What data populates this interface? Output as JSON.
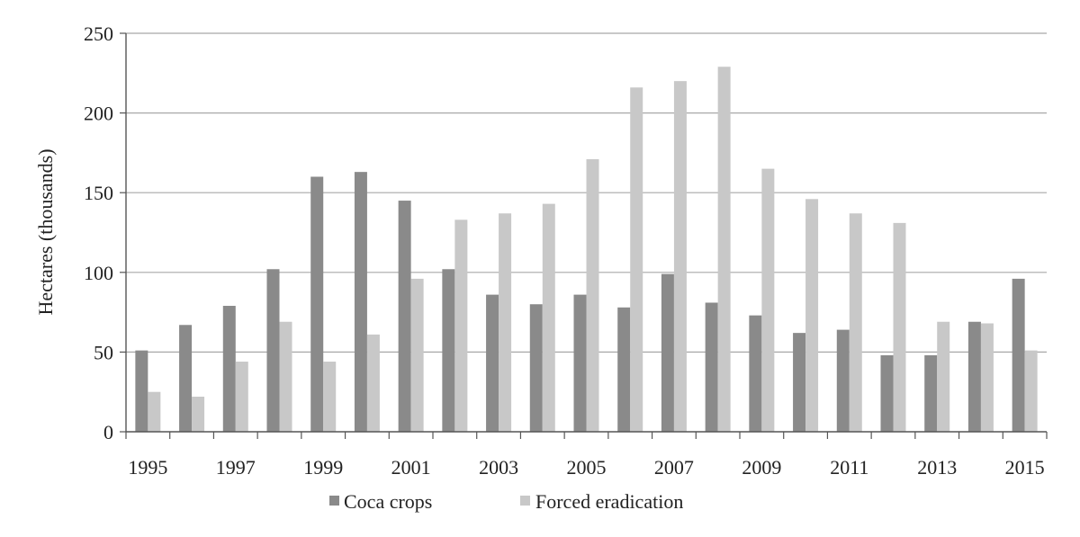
{
  "chart_data": {
    "type": "bar",
    "title": "",
    "xlabel": "",
    "ylabel": "Hectares (thousands)",
    "ylim": [
      0,
      250
    ],
    "yticks": [
      "0",
      "50",
      "100",
      "150",
      "200",
      "250"
    ],
    "grid": true,
    "legend_position": "bottom",
    "categories": [
      "1995",
      "1996",
      "1997",
      "1998",
      "1999",
      "2000",
      "2001",
      "2002",
      "2003",
      "2004",
      "2005",
      "2006",
      "2007",
      "2008",
      "2009",
      "2010",
      "2011",
      "2012",
      "2013",
      "2014",
      "2015"
    ],
    "xtick_labels": [
      "1995",
      "",
      "1997",
      "",
      "1999",
      "",
      "2001",
      "",
      "2003",
      "",
      "2005",
      "",
      "2007",
      "",
      "2009",
      "",
      "2011",
      "",
      "2013",
      "",
      "2015"
    ],
    "series": [
      {
        "name": "Coca crops",
        "color": "#8a8a8a",
        "values": [
          51,
          67,
          79,
          102,
          160,
          163,
          145,
          102,
          86,
          80,
          86,
          78,
          99,
          81,
          73,
          62,
          64,
          48,
          48,
          69,
          96
        ]
      },
      {
        "name": "Forced eradication",
        "color": "#c8c8c8",
        "values": [
          25,
          22,
          44,
          69,
          44,
          61,
          96,
          133,
          137,
          143,
          171,
          216,
          220,
          229,
          165,
          146,
          137,
          131,
          69,
          68,
          51
        ]
      }
    ]
  }
}
